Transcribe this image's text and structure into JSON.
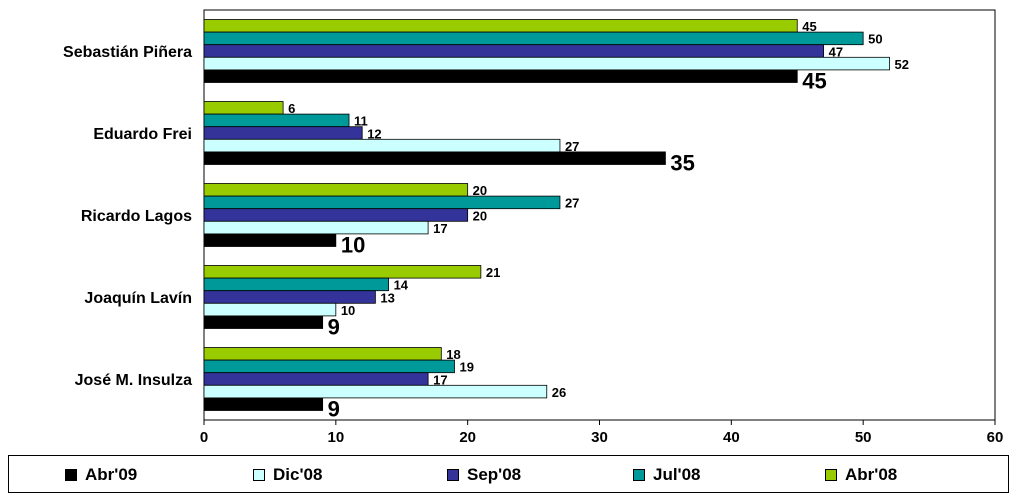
{
  "chart_data": {
    "type": "bar",
    "orientation": "horizontal",
    "categories": [
      "Sebastián Piñera",
      "Eduardo Frei",
      "Ricardo Lagos",
      "Joaquín Lavín",
      "José M. Insulza"
    ],
    "series": [
      {
        "name": "Abr'09",
        "color": "#000000",
        "values": [
          45,
          35,
          10,
          9,
          9
        ]
      },
      {
        "name": "Dic'08",
        "color": "#ccffff",
        "values": [
          52,
          27,
          17,
          10,
          26
        ]
      },
      {
        "name": "Sep'08",
        "color": "#333399",
        "values": [
          47,
          12,
          20,
          13,
          17
        ]
      },
      {
        "name": "Jul'08",
        "color": "#009999",
        "values": [
          50,
          11,
          27,
          14,
          19
        ]
      },
      {
        "name": "Abr'08",
        "color": "#99cc00",
        "values": [
          45,
          6,
          20,
          21,
          18
        ]
      }
    ],
    "xlim": [
      0,
      60
    ],
    "x_ticks": [
      "0",
      "10",
      "20",
      "30",
      "40",
      "50",
      "60"
    ],
    "grid": false,
    "legend_position": "bottom",
    "title": "",
    "xlabel": "",
    "ylabel": ""
  }
}
